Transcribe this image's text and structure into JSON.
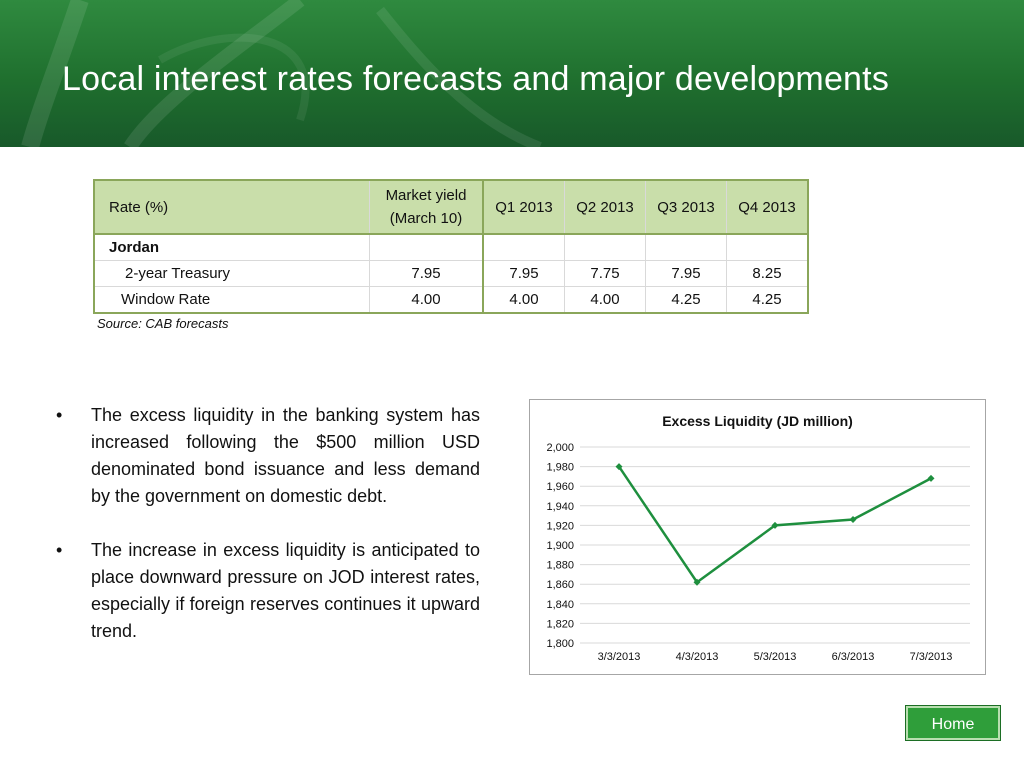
{
  "slide": {
    "title": "Local interest rates forecasts and major developments"
  },
  "table": {
    "headers": [
      "Rate (%)",
      "Market yield",
      "(March 10)",
      "Q1 2013",
      "Q2 2013",
      "Q3 2013",
      "Q4 2013"
    ],
    "group": "Jordan",
    "rows": [
      {
        "label": "2-year Treasury",
        "values": [
          "7.95",
          "7.95",
          "7.75",
          "7.95",
          "8.25"
        ]
      },
      {
        "label": "Window Rate",
        "values": [
          "4.00",
          "4.00",
          "4.00",
          "4.25",
          "4.25"
        ]
      }
    ],
    "source": "Source: CAB forecasts"
  },
  "bullets": [
    "The excess liquidity in the banking system has increased following the $500 million USD denominated bond issuance and less demand by the government on domestic debt.",
    "The increase in excess liquidity is anticipated to place downward pressure on JOD interest rates, especially if foreign reserves continues it upward trend."
  ],
  "bullet_symbol": "•",
  "chart_data": {
    "type": "line",
    "title": "Excess Liquidity (JD million)",
    "categories": [
      "3/3/2013",
      "4/3/2013",
      "5/3/2013",
      "6/3/2013",
      "7/3/2013"
    ],
    "values": [
      1980,
      1862,
      1920,
      1926,
      1968
    ],
    "ylim": [
      1800,
      2000
    ],
    "yticks": [
      "1,800",
      "1,820",
      "1,840",
      "1,860",
      "1,880",
      "1,900",
      "1,920",
      "1,940",
      "1,960",
      "1,980",
      "2,000"
    ],
    "grid": true,
    "color": "#1e8f3e"
  },
  "nav": {
    "home_label": "Home"
  }
}
